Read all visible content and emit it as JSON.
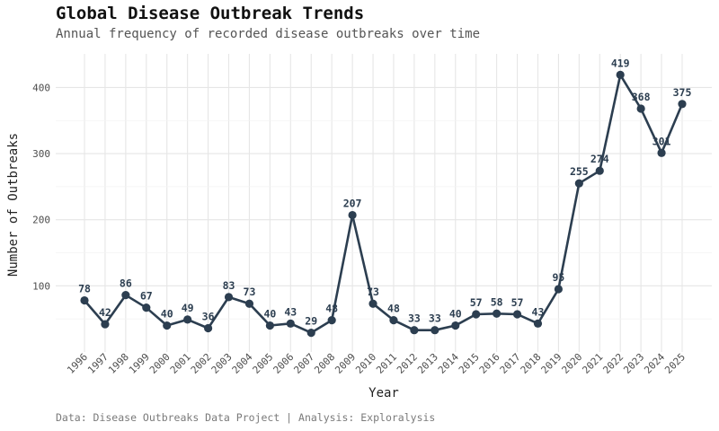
{
  "header": {
    "title": "Global Disease Outbreak Trends",
    "subtitle": "Annual frequency of recorded disease outbreaks over time"
  },
  "footer": {
    "caption": "Data: Disease Outbreaks Data Project | Analysis: Exploralysis"
  },
  "style": {
    "line_color": "#2c3e50",
    "grid_color": "#e6e6e6",
    "background": "#ffffff"
  },
  "chart_data": {
    "type": "line",
    "title": "Global Disease Outbreak Trends",
    "subtitle": "Annual frequency of recorded disease outbreaks over time",
    "xlabel": "Year",
    "ylabel": "Number of Outbreaks",
    "x": [
      "1996",
      "1997",
      "1998",
      "1999",
      "2000",
      "2001",
      "2002",
      "2003",
      "2004",
      "2005",
      "2006",
      "2007",
      "2008",
      "2009",
      "2010",
      "2011",
      "2012",
      "2013",
      "2014",
      "2015",
      "2016",
      "2017",
      "2018",
      "2019",
      "2020",
      "2021",
      "2022",
      "2023",
      "2024",
      "2025"
    ],
    "values": [
      78,
      42,
      86,
      67,
      40,
      49,
      36,
      83,
      73,
      40,
      43,
      29,
      48,
      207,
      73,
      48,
      33,
      33,
      40,
      57,
      58,
      57,
      43,
      95,
      255,
      274,
      419,
      368,
      301,
      375
    ],
    "yticks": [
      100,
      200,
      300,
      400
    ],
    "ylim": [
      0,
      450
    ],
    "grid": true,
    "legend": "none",
    "markers": true,
    "data_labels": true
  }
}
